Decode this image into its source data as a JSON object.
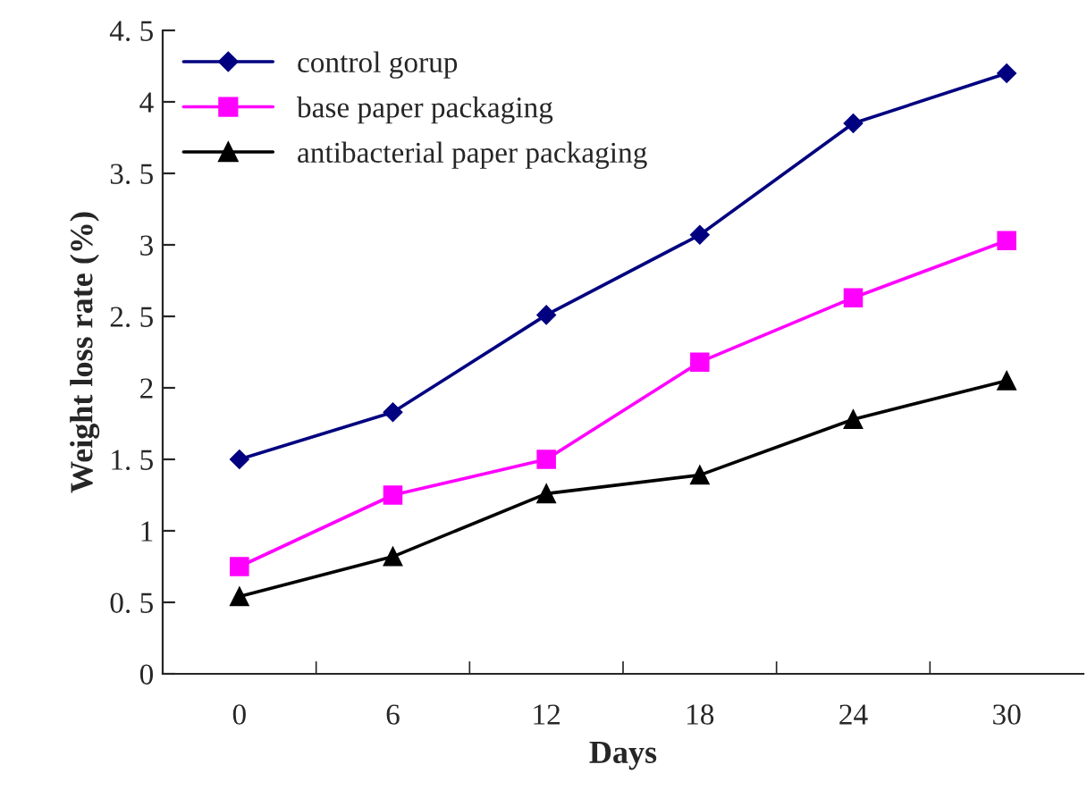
{
  "chart_data": {
    "type": "line",
    "xlabel": "Days",
    "ylabel": "Weight loss rate (%)",
    "categories": [
      "0",
      "6",
      "12",
      "18",
      "24",
      "30"
    ],
    "series": [
      {
        "name": "control gorup",
        "color": "#000080",
        "marker": "diamond",
        "values": [
          1.5,
          1.83,
          2.51,
          3.07,
          3.85,
          4.2
        ]
      },
      {
        "name": "base paper packaging",
        "color": "#ff00ff",
        "marker": "square",
        "values": [
          0.75,
          1.25,
          1.5,
          2.18,
          2.63,
          3.03
        ]
      },
      {
        "name": "antibacterial paper packaging",
        "color": "#000000",
        "marker": "triangle",
        "values": [
          0.54,
          0.82,
          1.26,
          1.39,
          1.78,
          2.05
        ]
      }
    ],
    "ylim": [
      0,
      4.5
    ],
    "yticks": [
      0,
      {
        "value": 0.5,
        "label": "0. 5"
      },
      1,
      {
        "value": 1.5,
        "label": "1. 5"
      },
      2,
      {
        "value": 2.5,
        "label": "2. 5"
      },
      3,
      {
        "value": 3.5,
        "label": "3. 5"
      },
      4,
      {
        "value": 4.5,
        "label": "4. 5"
      }
    ],
    "grid": false,
    "legend": "top left",
    "line_style": "solid"
  }
}
